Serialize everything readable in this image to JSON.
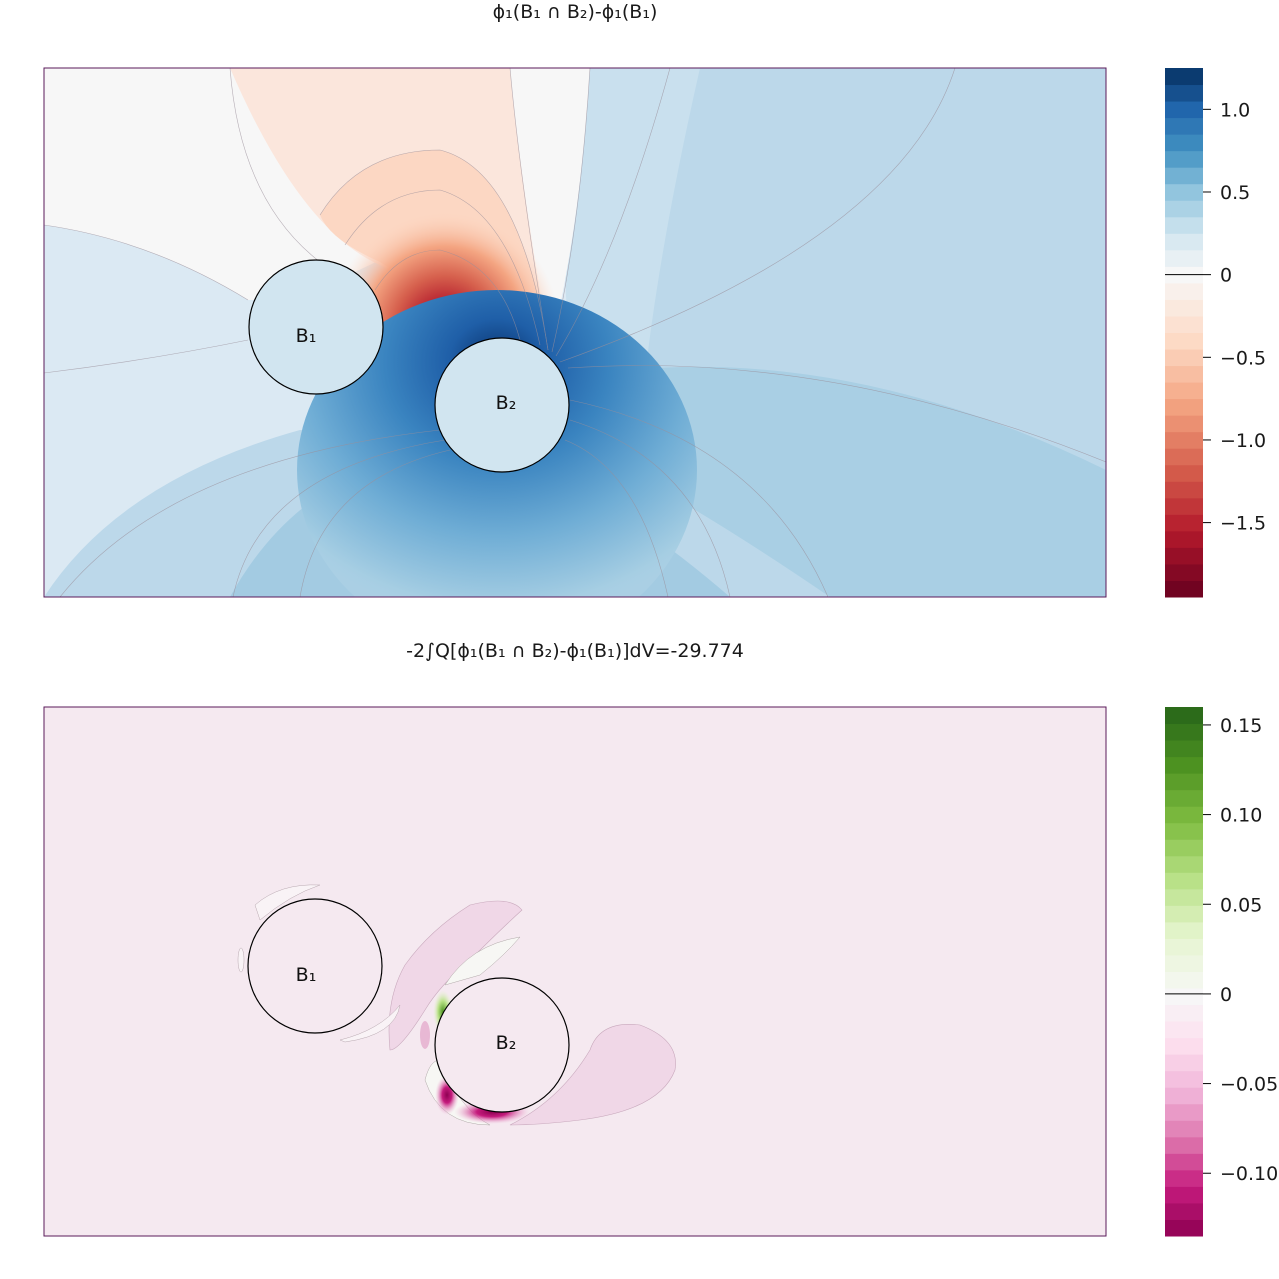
{
  "chart_data": [
    {
      "type": "heatmap",
      "title": "ϕ₁(B₁ ∩ B₂)-ϕ₁(B₁)",
      "colormap": "RdBu",
      "colorbar": {
        "range": [
          -1.95,
          1.25
        ],
        "ticks": [
          "1.0",
          "0.5",
          "0",
          "−0.5",
          "−1.0",
          "−1.5"
        ],
        "tick_values": [
          1.0,
          0.5,
          0,
          -0.5,
          -1.0,
          -1.5
        ]
      },
      "annotations": [
        "B₁",
        "B₂"
      ]
    },
    {
      "type": "heatmap",
      "title": "-2∫Q[ϕ₁(B₁ ∩ B₂)-ϕ₁(B₁)]dV=-29.774",
      "colormap": "PiYG",
      "colorbar": {
        "range": [
          -0.135,
          0.16
        ],
        "ticks": [
          "0.15",
          "0.10",
          "0.05",
          "0",
          "−0.05",
          "−0.10"
        ],
        "tick_values": [
          0.15,
          0.1,
          0.05,
          0,
          -0.05,
          -0.1
        ]
      },
      "annotations": [
        "B₁",
        "B₂"
      ]
    }
  ]
}
